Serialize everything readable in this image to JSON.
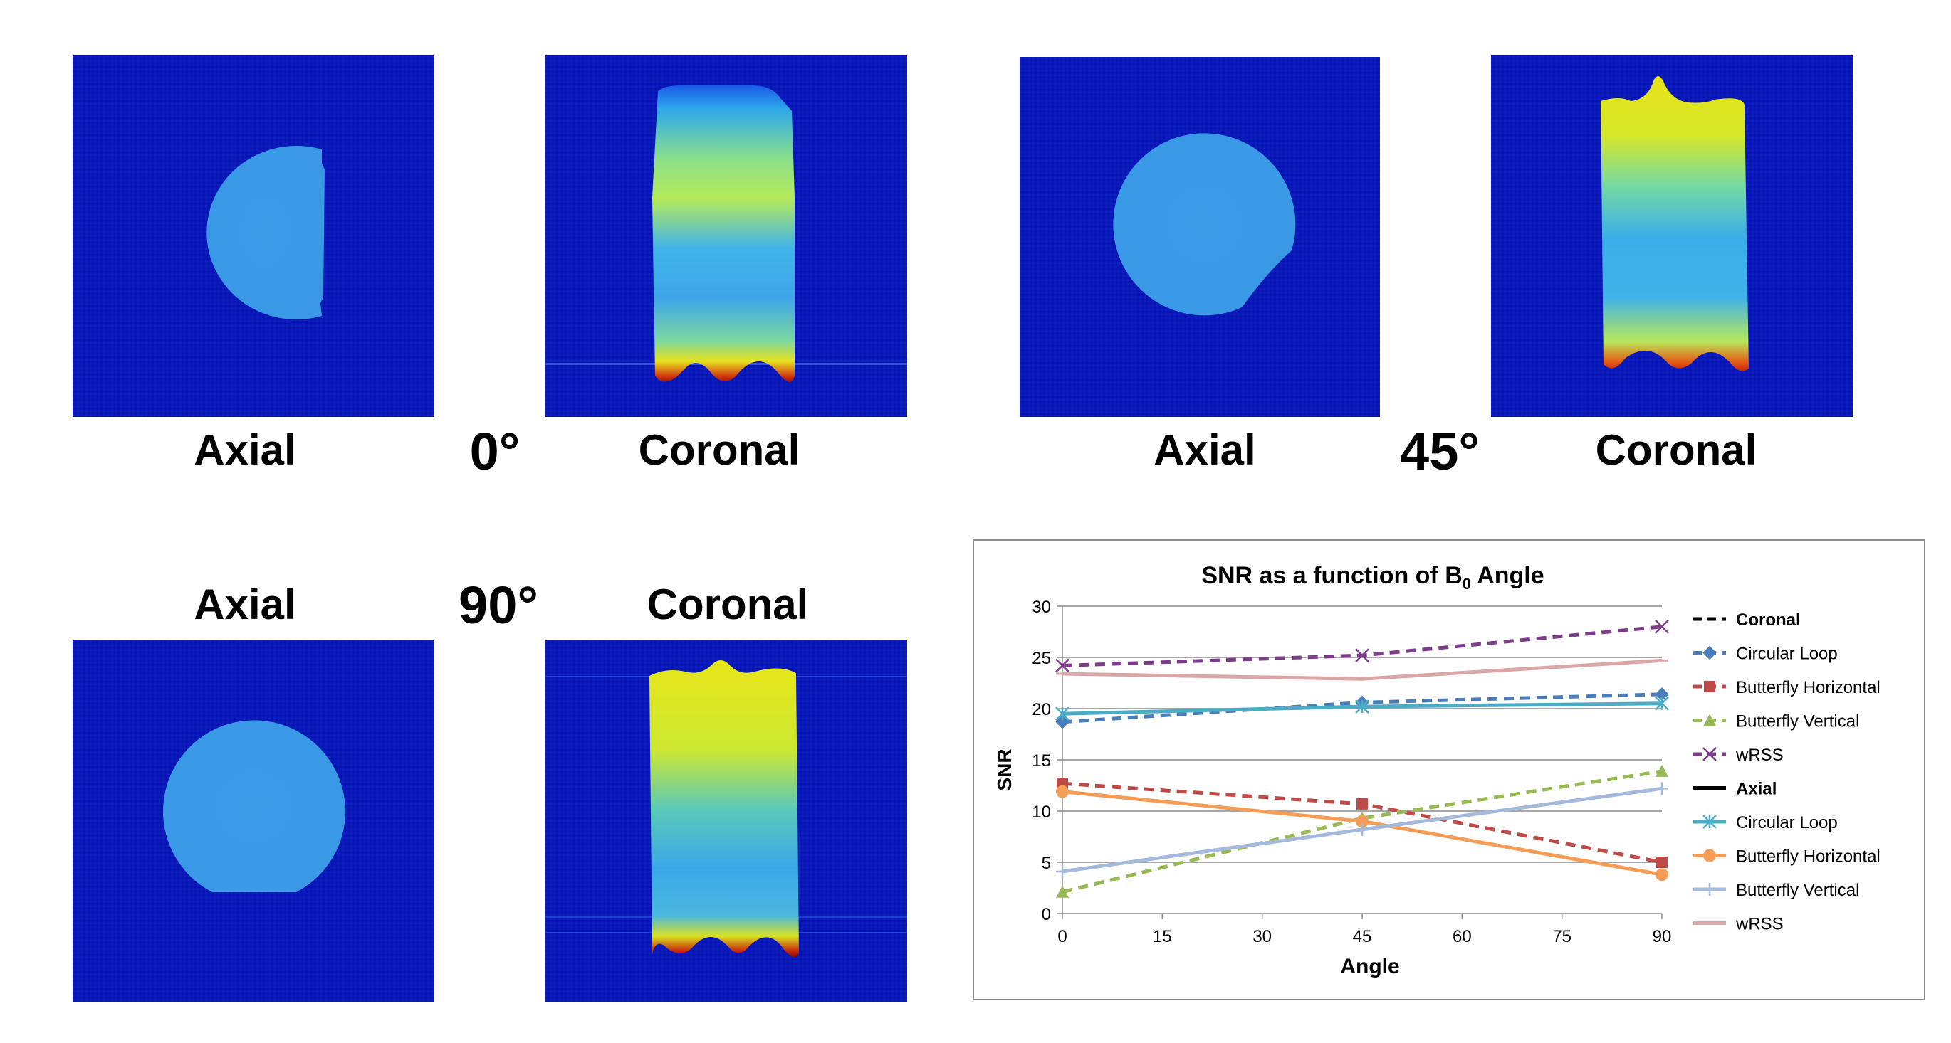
{
  "panels": {
    "p0": {
      "view_label": "Axial",
      "companion_label": "Coronal",
      "angle_label": "0°"
    },
    "p45": {
      "view_label": "Axial",
      "companion_label": "Coronal",
      "angle_label": "45°"
    },
    "p90": {
      "view_label": "Axial",
      "companion_label": "Coronal",
      "angle_label": "90°"
    }
  },
  "colors": {
    "background_dark_blue": "#0a18b8",
    "phantom_light_blue": "#3a9ee8",
    "hot_yellow": "#e8e61a",
    "hot_red": "#c01e0a"
  },
  "chart_data": {
    "type": "line",
    "title_main": "SNR as a function of B",
    "title_sub": "0",
    "title_tail": " Angle",
    "xlabel": "Angle",
    "ylabel": "SNR",
    "xlim": [
      0,
      90
    ],
    "ylim": [
      0,
      30
    ],
    "xticks": [
      0,
      15,
      30,
      45,
      60,
      75,
      90
    ],
    "yticks": [
      0,
      5,
      10,
      15,
      20,
      25,
      30
    ],
    "x": [
      0,
      45,
      90
    ],
    "grid": true,
    "legend_position": "right",
    "legend_groups": [
      {
        "name": "Coronal",
        "style": "dashed"
      },
      {
        "name": "Axial",
        "style": "solid"
      }
    ],
    "series": [
      {
        "name": "Circular Loop",
        "group": "Coronal",
        "style": "dashed",
        "marker": "diamond",
        "color": "#4a7ebb",
        "values": [
          18.7,
          20.6,
          21.4
        ]
      },
      {
        "name": "Butterfly Horizontal",
        "group": "Coronal",
        "style": "dashed",
        "marker": "square",
        "color": "#be4b48",
        "values": [
          12.7,
          10.7,
          5.0
        ]
      },
      {
        "name": "Butterfly Vertical",
        "group": "Coronal",
        "style": "dashed",
        "marker": "triangle",
        "color": "#98b954",
        "values": [
          2.1,
          9.3,
          13.9
        ]
      },
      {
        "name": "wRSS",
        "group": "Coronal",
        "style": "dashed",
        "marker": "x",
        "color": "#7d3c8a",
        "values": [
          24.2,
          25.2,
          28.0
        ]
      },
      {
        "name": "Circular Loop",
        "group": "Axial",
        "style": "solid",
        "marker": "star",
        "color": "#4aacc5",
        "values": [
          19.5,
          20.2,
          20.5
        ]
      },
      {
        "name": "Butterfly Horizontal",
        "group": "Axial",
        "style": "solid",
        "marker": "circle",
        "color": "#f59d56",
        "values": [
          11.9,
          9.0,
          3.8
        ]
      },
      {
        "name": "Butterfly Vertical",
        "group": "Axial",
        "style": "solid",
        "marker": "plus",
        "color": "#a5b9dc",
        "values": [
          4.1,
          8.2,
          12.2
        ]
      },
      {
        "name": "wRSS",
        "group": "Axial",
        "style": "solid",
        "marker": "dash",
        "color": "#dba6a6",
        "values": [
          23.4,
          22.9,
          24.7
        ]
      }
    ]
  }
}
